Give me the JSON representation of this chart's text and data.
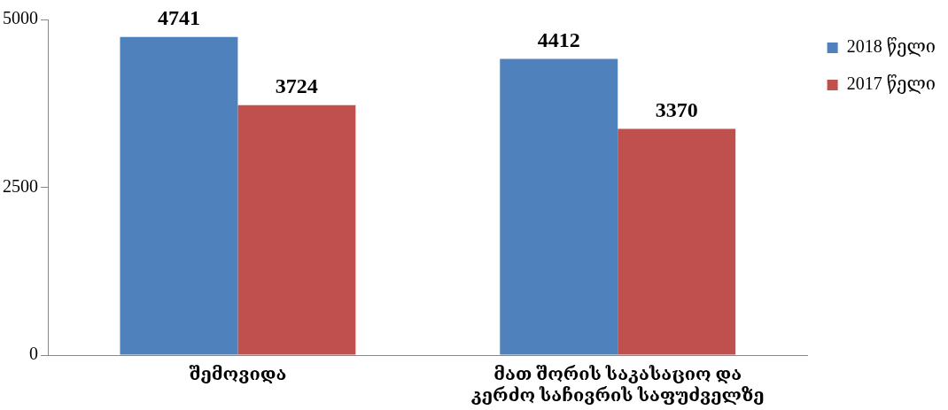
{
  "chart_data": {
    "type": "bar",
    "categories": [
      "შემოვიდა",
      "მათ შორის საკასაციო და კერძო საჩივრის საფუძველზე"
    ],
    "series": [
      {
        "name": "2018 წელი",
        "color": "#4f81bd",
        "values": [
          4741,
          4412
        ]
      },
      {
        "name": "2017 წელი",
        "color": "#c0504d",
        "values": [
          3724,
          3370
        ]
      }
    ],
    "ylim": [
      0,
      5000
    ],
    "yticks": [
      0,
      2500,
      5000
    ],
    "grid": false,
    "legend": "top right",
    "data_labels": true
  }
}
